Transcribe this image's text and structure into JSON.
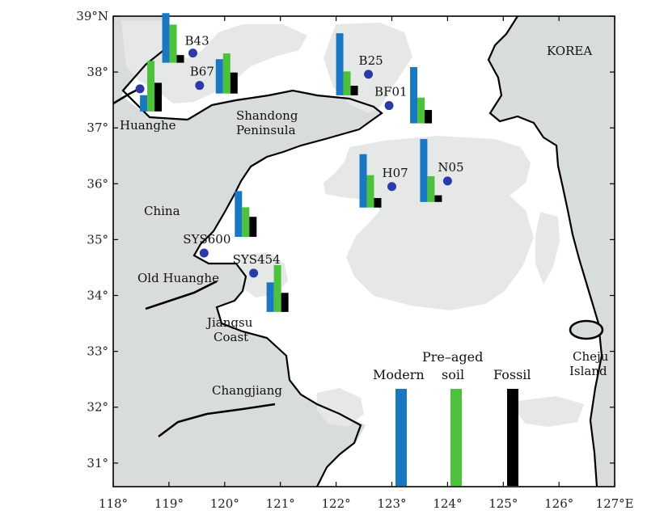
{
  "axes": {
    "lon_ticks": [
      {
        "value": 118,
        "label": "118°"
      },
      {
        "value": 119,
        "label": "119°"
      },
      {
        "value": 120,
        "label": "120°"
      },
      {
        "value": 121,
        "label": "121°"
      },
      {
        "value": 122,
        "label": "122°"
      },
      {
        "value": 123,
        "label": "123°"
      },
      {
        "value": 124,
        "label": "124°"
      },
      {
        "value": 125,
        "label": "125°"
      },
      {
        "value": 126,
        "label": "126°"
      },
      {
        "value": 127,
        "label": "127°E"
      }
    ],
    "lat_ticks": [
      {
        "value": 39,
        "label": "39°N"
      },
      {
        "value": 38,
        "label": "38°"
      },
      {
        "value": 37,
        "label": "37°"
      },
      {
        "value": 36,
        "label": "36°"
      },
      {
        "value": 35,
        "label": "35°"
      },
      {
        "value": 34,
        "label": "34°"
      },
      {
        "value": 33,
        "label": "33°"
      },
      {
        "value": 32,
        "label": "32°"
      },
      {
        "value": 31,
        "label": "31°"
      }
    ]
  },
  "labels": {
    "korea": "KOREA",
    "huanghe": "Huanghe",
    "shandong_1": "Shandong",
    "shandong_2": "Peninsula",
    "china": "China",
    "old_huanghe": "Old Huanghe",
    "jiangsu_1": "Jiangsu",
    "jiangsu_2": "Coast",
    "changjiang": "Changjiang",
    "cheju_1": "Cheju",
    "cheju_2": "Island"
  },
  "legend": {
    "modern": "Modern",
    "preaged_1": "Pre–aged",
    "preaged_2": "soil",
    "fossil": "Fossil",
    "colors": {
      "modern": "#1a78c2",
      "preaged": "#4cc23c",
      "fossil": "#000000"
    }
  },
  "stations": [
    {
      "name": "B43",
      "lon": 119.43,
      "lat": 38.34,
      "fractions": {
        "modern": 0.52,
        "preaged": 0.4,
        "fossil": 0.08
      }
    },
    {
      "name": "B67",
      "lon": 119.55,
      "lat": 37.76,
      "fractions": {
        "modern": 0.36,
        "preaged": 0.42,
        "fossil": 0.22
      }
    },
    {
      "name": "",
      "lon": 118.48,
      "lat": 37.7,
      "fractions": {
        "modern": 0.17,
        "preaged": 0.53,
        "fossil": 0.3
      }
    },
    {
      "name": "B25",
      "lon": 122.58,
      "lat": 37.96,
      "fractions": {
        "modern": 0.65,
        "preaged": 0.25,
        "fossil": 0.1
      }
    },
    {
      "name": "BF01",
      "lon": 122.95,
      "lat": 37.4,
      "fractions": {
        "modern": 0.59,
        "preaged": 0.27,
        "fossil": 0.14
      }
    },
    {
      "name": "H07",
      "lon": 123.0,
      "lat": 35.95,
      "fractions": {
        "modern": 0.56,
        "preaged": 0.34,
        "fossil": 0.1
      }
    },
    {
      "name": "N05",
      "lon": 124.0,
      "lat": 36.05,
      "fractions": {
        "modern": 0.66,
        "preaged": 0.27,
        "fossil": 0.07
      }
    },
    {
      "name": "SYS600",
      "lon": 119.63,
      "lat": 34.76,
      "fractions": {
        "modern": 0.48,
        "preaged": 0.31,
        "fossil": 0.21
      }
    },
    {
      "name": "SYS454",
      "lon": 120.52,
      "lat": 34.4,
      "fractions": {
        "modern": 0.31,
        "preaged": 0.49,
        "fossil": 0.2
      }
    }
  ]
}
